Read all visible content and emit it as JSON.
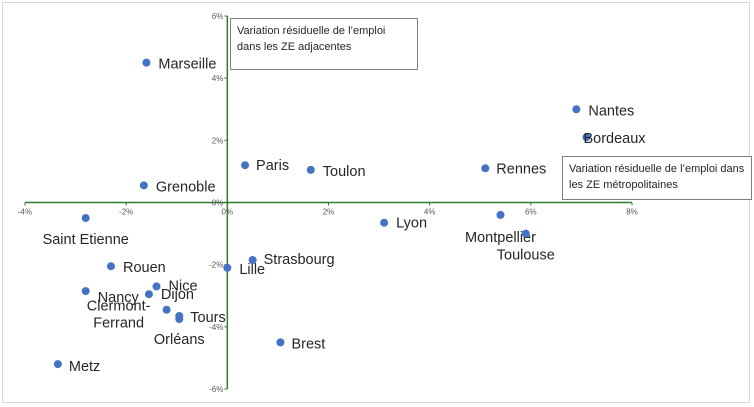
{
  "chart_data": {
    "type": "scatter",
    "xlim": [
      -4,
      8
    ],
    "ylim": [
      -6,
      6
    ],
    "x_ticks": [
      "-4%",
      "-2%",
      "0%",
      "2%",
      "4%",
      "6%",
      "8%"
    ],
    "y_ticks": [
      "6%",
      "4%",
      "2%",
      "0%",
      "-2%",
      "-4%",
      "-6%"
    ],
    "grid": false,
    "points": [
      {
        "label": "Marseille",
        "x": -1.6,
        "y": 4.5
      },
      {
        "label": "Nantes",
        "x": 6.9,
        "y": 3.0
      },
      {
        "label": "Bordeaux",
        "x": 7.1,
        "y": 2.1
      },
      {
        "label": "Paris",
        "x": 0.35,
        "y": 1.2
      },
      {
        "label": "Toulon",
        "x": 1.65,
        "y": 1.05
      },
      {
        "label": "Rennes",
        "x": 5.1,
        "y": 1.1
      },
      {
        "label": "Grenoble",
        "x": -1.65,
        "y": 0.55
      },
      {
        "label": "Saint Etienne",
        "x": -2.8,
        "y": -0.5
      },
      {
        "label": "Lyon",
        "x": 3.1,
        "y": -0.65
      },
      {
        "label": "Montpellier",
        "x": 5.4,
        "y": -0.4
      },
      {
        "label": "Toulouse",
        "x": 5.9,
        "y": -1.0
      },
      {
        "label": "Rouen",
        "x": -2.3,
        "y": -2.05
      },
      {
        "label": "Lille",
        "x": 0.0,
        "y": -2.1
      },
      {
        "label": "Strasbourg",
        "x": 0.5,
        "y": -1.85
      },
      {
        "label": "Nancy",
        "x": -2.8,
        "y": -2.85
      },
      {
        "label": "Dijon",
        "x": -1.55,
        "y": -2.95
      },
      {
        "label": "Nice",
        "x": -1.4,
        "y": -2.7
      },
      {
        "label": "Clermont-Ferrand",
        "x": -1.2,
        "y": -3.45
      },
      {
        "label": "Tours",
        "x": -0.95,
        "y": -3.65
      },
      {
        "label": "Orléans",
        "x": -0.95,
        "y": -3.75
      },
      {
        "label": "Brest",
        "x": 1.05,
        "y": -4.5
      },
      {
        "label": "Metz",
        "x": -3.35,
        "y": -5.2
      }
    ],
    "annotations": {
      "y_axis_note": "Variation résiduelle de l’emploi dans les ZE adjacentes",
      "x_axis_note": "Variation résiduelle de l’emploi dans les ZE métropolitaines"
    },
    "colors": {
      "point": "#4472c4",
      "axis": "#2e7d32"
    }
  }
}
